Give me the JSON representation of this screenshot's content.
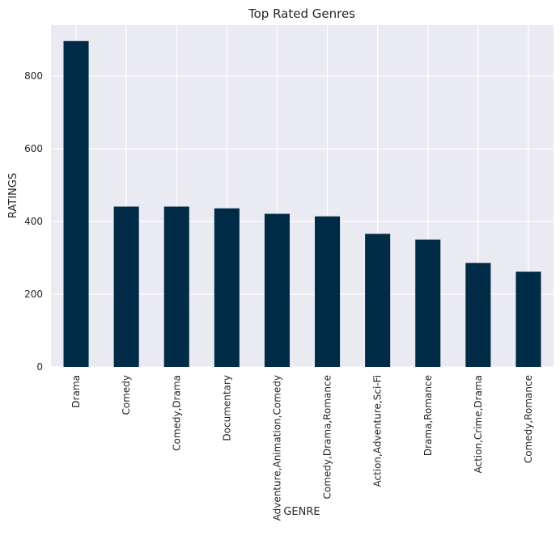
{
  "chart_data": {
    "type": "bar",
    "title": "Top Rated Genres",
    "xlabel": "GENRE",
    "ylabel": "RATINGS",
    "categories": [
      "Drama",
      "Comedy",
      "Comedy,Drama",
      "Documentary",
      "Adventure,Animation,Comedy",
      "Comedy,Drama,Romance",
      "Action,Adventure,Sci-Fi",
      "Drama,Romance",
      "Action,Crime,Drama",
      "Comedy,Romance"
    ],
    "values": [
      896,
      441,
      441,
      436,
      421,
      414,
      366,
      350,
      286,
      262
    ],
    "yticks": [
      "0",
      "200",
      "400",
      "600",
      "800"
    ],
    "ylim": [
      0,
      940
    ],
    "grid": true,
    "colors": {
      "bar": "#002b47",
      "plot_bg": "#eaeaf2",
      "grid": "#ffffff",
      "text": "#262626"
    }
  }
}
